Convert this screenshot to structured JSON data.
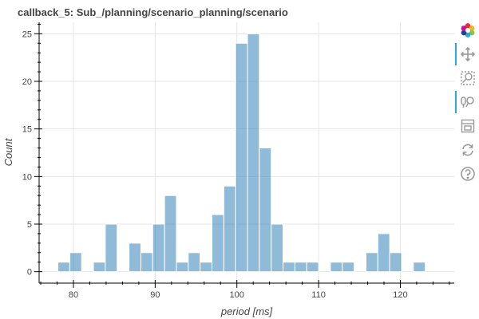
{
  "chart_data": {
    "type": "bar",
    "title": "callback_5: Sub_/planning/scenario_planning/scenario",
    "xlabel": "period [ms]",
    "ylabel": "Count",
    "xlim": [
      75.8,
      126.6
    ],
    "ylim": [
      -1.2,
      26.2
    ],
    "xticks": [
      80,
      90,
      100,
      110,
      120
    ],
    "yticks": [
      0,
      5,
      10,
      15,
      20,
      25
    ],
    "grid": true,
    "bin_width": 1.45,
    "bin_start": 78.1,
    "counts": [
      1,
      2,
      0,
      1,
      5,
      0,
      3,
      2,
      5,
      8,
      1,
      2,
      1,
      6,
      9,
      24,
      25,
      13,
      5,
      1,
      1,
      1,
      0,
      1,
      1,
      0,
      2,
      4,
      2,
      0,
      1
    ],
    "bar_color": "#1f77b4",
    "bar_alpha": 0.5
  },
  "toolbar": {
    "items": [
      {
        "name": "bokeh-logo",
        "icon": "bokeh-logo-icon",
        "active": false,
        "interactable": false
      },
      {
        "name": "pan-tool",
        "icon": "pan-icon",
        "active": true,
        "interactable": true
      },
      {
        "name": "box-zoom-tool",
        "icon": "box-zoom-icon",
        "active": false,
        "interactable": true
      },
      {
        "name": "wheel-zoom-tool",
        "icon": "wheel-zoom-icon",
        "active": true,
        "interactable": true
      },
      {
        "name": "save-tool",
        "icon": "save-icon",
        "active": false,
        "interactable": true
      },
      {
        "name": "reset-tool",
        "icon": "reset-icon",
        "active": false,
        "interactable": true
      },
      {
        "name": "help-tool",
        "icon": "help-icon",
        "active": false,
        "interactable": true
      }
    ]
  }
}
